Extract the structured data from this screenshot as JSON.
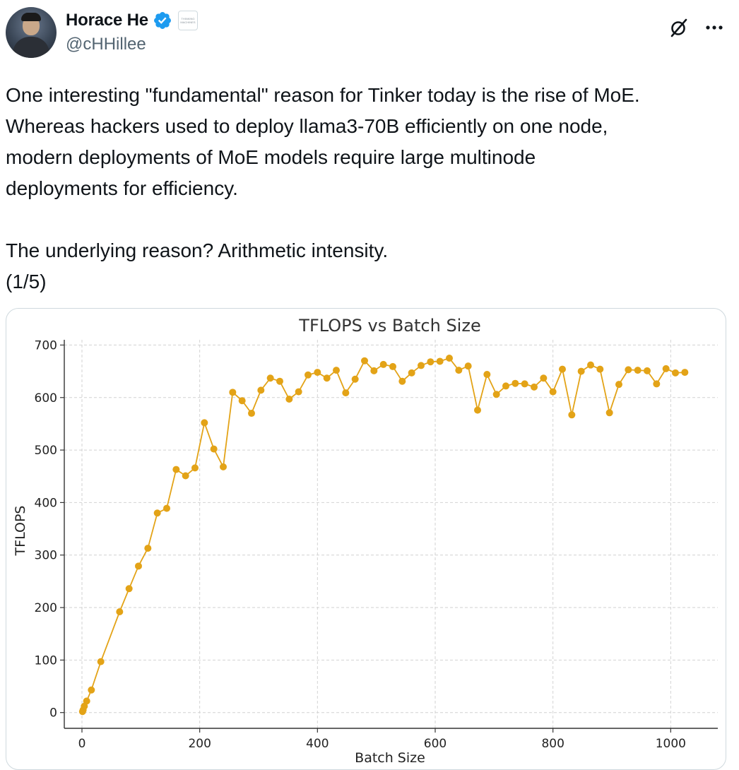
{
  "author": {
    "display_name": "Horace He",
    "handle": "@cHHillee",
    "affiliate_badge_text": "THINKING MACHINES",
    "verified_color": "#1d9bf0"
  },
  "actions": {
    "grok_icon": "grok-icon",
    "more_icon": "more-horizontal-icon",
    "more_label": "···"
  },
  "tweet": {
    "text": "One interesting \"fundamental\" reason for Tinker today is the rise of MoE.\nWhereas hackers used to deploy llama3-70B efficiently on one node,\nmodern deployments of MoE models require large multinode\ndeployments for efficiency.\n\nThe underlying reason? Arithmetic intensity.\n(1/5)"
  },
  "chart_data": {
    "type": "line",
    "title": "TFLOPS vs Batch Size",
    "xlabel": "Batch Size",
    "ylabel": "TFLOPS",
    "xlim": [
      -30,
      1080
    ],
    "ylim": [
      -30,
      710
    ],
    "xticks": [
      0,
      200,
      400,
      600,
      800,
      1000
    ],
    "yticks": [
      0,
      100,
      200,
      300,
      400,
      500,
      600,
      700
    ],
    "grid": true,
    "color": "#e3a317",
    "series": [
      {
        "x": [
          1,
          2,
          4,
          8,
          16,
          32,
          64,
          80,
          96,
          112,
          128,
          144,
          160,
          176,
          192,
          208,
          224,
          240,
          256,
          272,
          288,
          304,
          320,
          336,
          352,
          368,
          384,
          400,
          416,
          432,
          448,
          464,
          480,
          496,
          512,
          528,
          544,
          560,
          576,
          592,
          608,
          624,
          640,
          656,
          672,
          688,
          704,
          720,
          736,
          752,
          768,
          784,
          800,
          816,
          832,
          848,
          864,
          880,
          896,
          912,
          928,
          944,
          960,
          976,
          992,
          1008,
          1024
        ],
        "y": [
          2,
          5,
          12,
          22,
          43,
          97,
          192,
          236,
          279,
          313,
          380,
          389,
          463,
          451,
          466,
          552,
          502,
          468,
          610,
          594,
          570,
          614,
          637,
          631,
          597,
          611,
          643,
          648,
          637,
          652,
          609,
          635,
          670,
          651,
          663,
          659,
          631,
          647,
          661,
          668,
          669,
          675,
          652,
          660,
          576,
          644,
          606,
          622,
          627,
          626,
          620,
          637,
          611,
          654,
          567,
          650,
          662,
          654,
          571,
          625,
          653,
          652,
          651,
          626,
          655,
          647,
          648
        ]
      }
    ]
  }
}
